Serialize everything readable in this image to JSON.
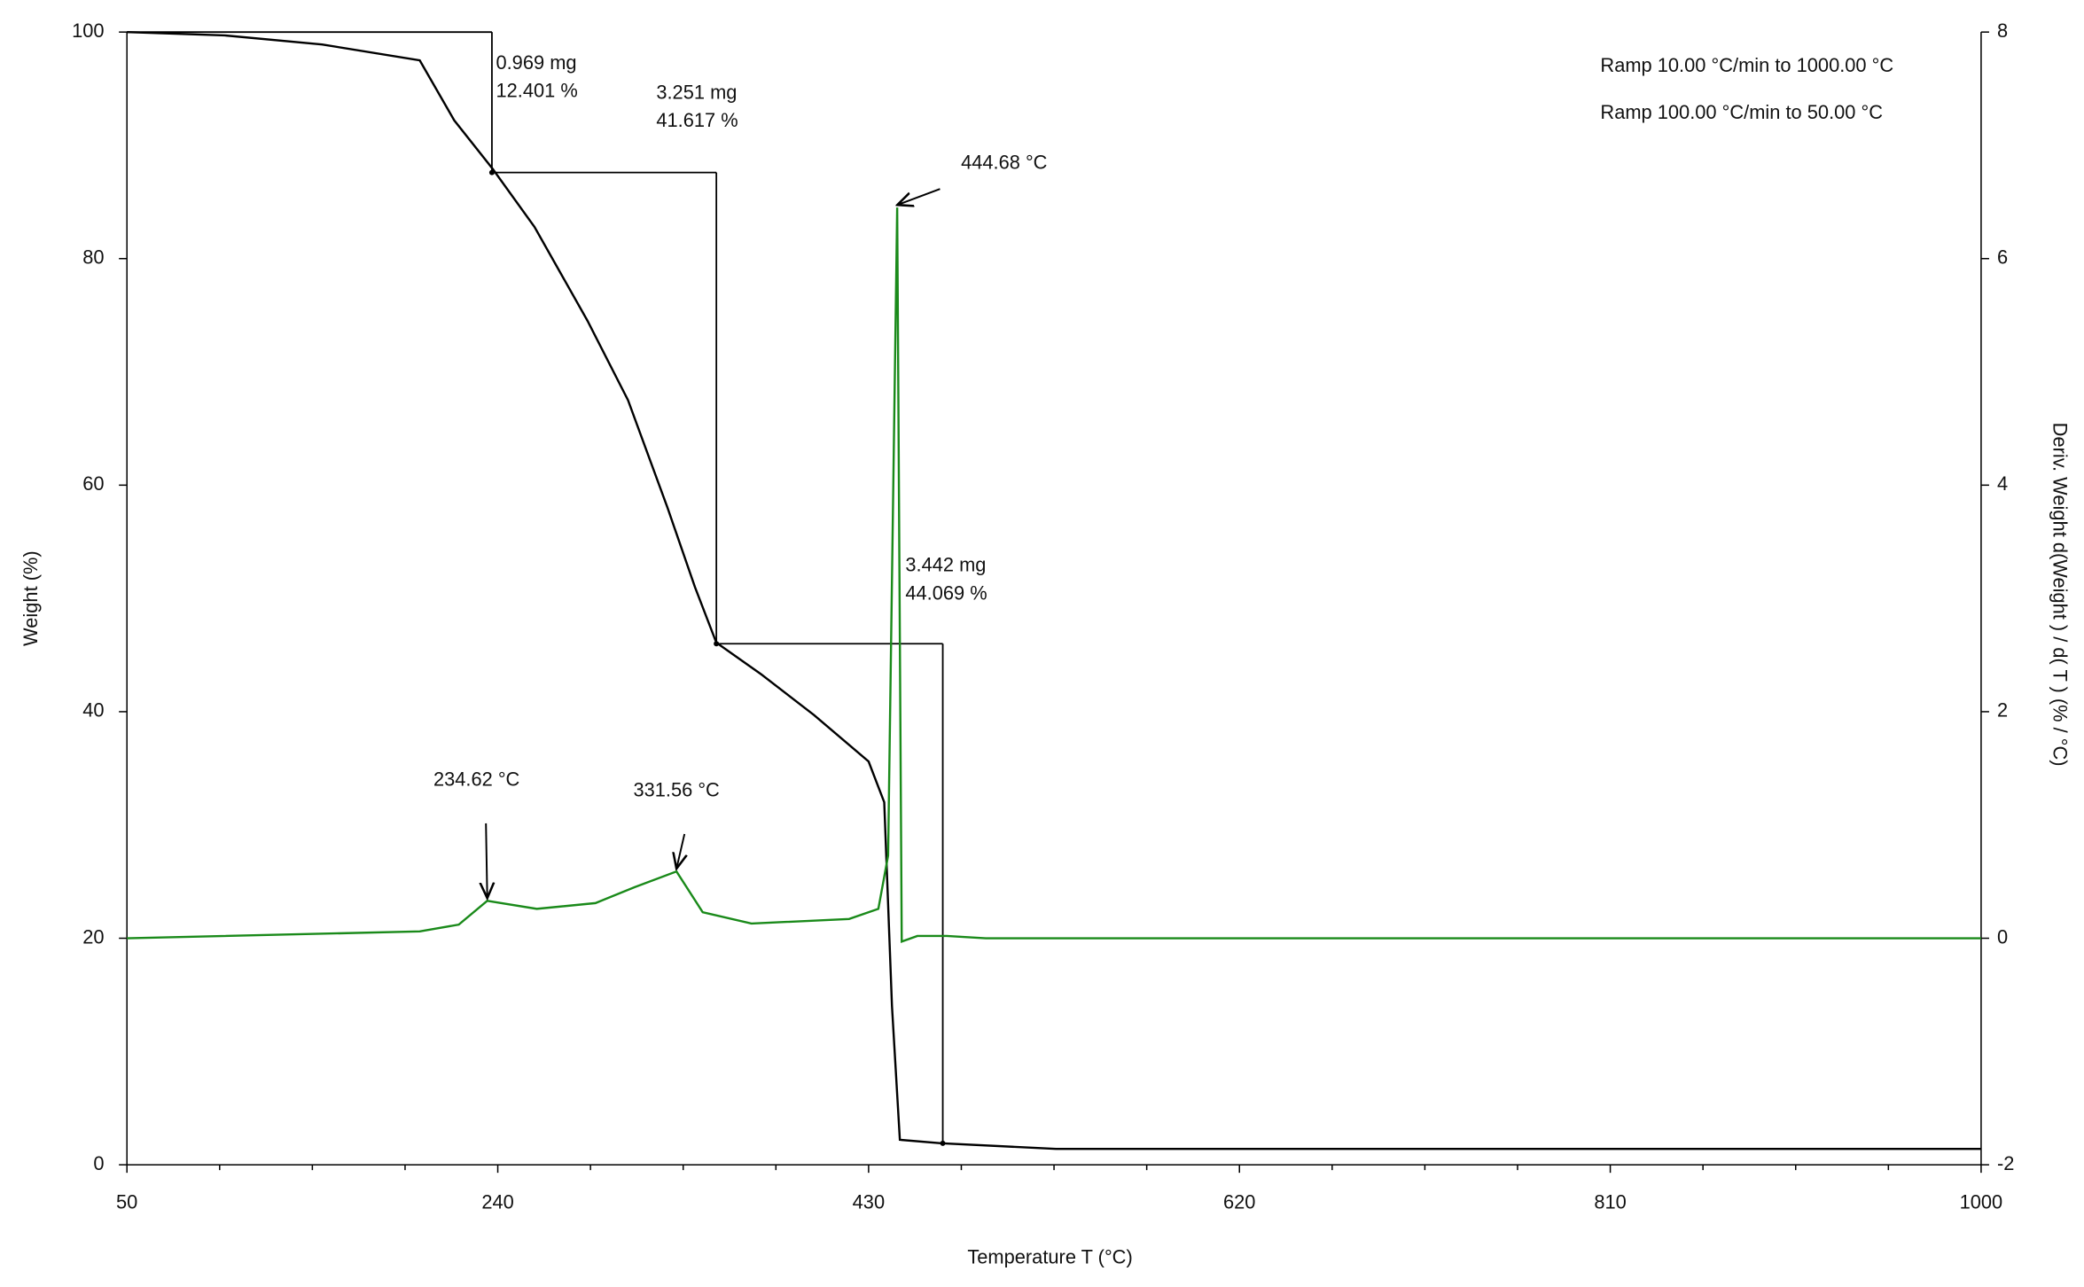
{
  "chart_data": {
    "type": "line",
    "xlabel": "Temperature T (°C)",
    "ylabel": "Weight  (%)",
    "y2label": "Deriv. Weight d(Weight ) / d( T )  (% / °C)",
    "xlim": [
      50,
      1000
    ],
    "xticks": [
      50,
      240,
      430,
      620,
      810,
      1000
    ],
    "ylim": [
      0,
      100
    ],
    "yticks": [
      0,
      20,
      40,
      60,
      80,
      100
    ],
    "y2lim": [
      -2,
      8
    ],
    "y2ticks": [
      -2,
      0,
      2,
      4,
      6,
      8
    ],
    "series": [
      {
        "color": "#000000",
        "x": [
          50,
          100,
          150,
          200,
          217.7,
          237.5,
          258.8,
          286,
          306.7,
          327,
          341,
          352,
          375,
          402,
          430,
          438,
          442,
          446,
          467,
          526,
          1000
        ],
        "values": [
          100,
          99.7,
          98.9,
          97.5,
          92.2,
          87.9,
          82.8,
          74.5,
          67.5,
          58,
          51,
          46.1,
          43.3,
          39.7,
          35.6,
          32,
          14,
          2.2,
          1.9,
          1.4,
          1.4
        ]
      },
      {
        "color": "#1a8a1a",
        "axis": "y2",
        "x": [
          50,
          200,
          220,
          234.62,
          260,
          290,
          310,
          331.56,
          345,
          370,
          420,
          435,
          440,
          444.68,
          447,
          455,
          470,
          490,
          1000
        ],
        "values": [
          0,
          0.06,
          0.12,
          0.33,
          0.26,
          0.31,
          0.45,
          0.59,
          0.23,
          0.13,
          0.17,
          0.26,
          0.73,
          6.45,
          -0.03,
          0.02,
          0.02,
          0,
          0
        ]
      }
    ],
    "weight_steps": [
      {
        "x": 237,
        "from": 100,
        "to": 87.6,
        "labels": [
          "0.969 mg",
          "12.401 %"
        ]
      },
      {
        "x": 352,
        "from": 87.6,
        "to": 46,
        "labels": [
          "3.251 mg",
          "41.617 %"
        ]
      },
      {
        "x": 468,
        "from": 46,
        "to": 1.9,
        "labels": [
          "3.442 mg",
          "44.069 %"
        ]
      }
    ],
    "peaks": [
      {
        "text": "234.62 °C",
        "x": 234.62,
        "y": 0.33
      },
      {
        "text": "331.56 °C",
        "x": 331.56,
        "y": 0.59
      },
      {
        "text": "444.68 °C",
        "x": 444.68,
        "y": 6.45
      }
    ],
    "notes": [
      "Ramp 10.00 °C/min to 1000.00 °C",
      "Ramp 100.00 °C/min to 50.00 °C"
    ]
  }
}
